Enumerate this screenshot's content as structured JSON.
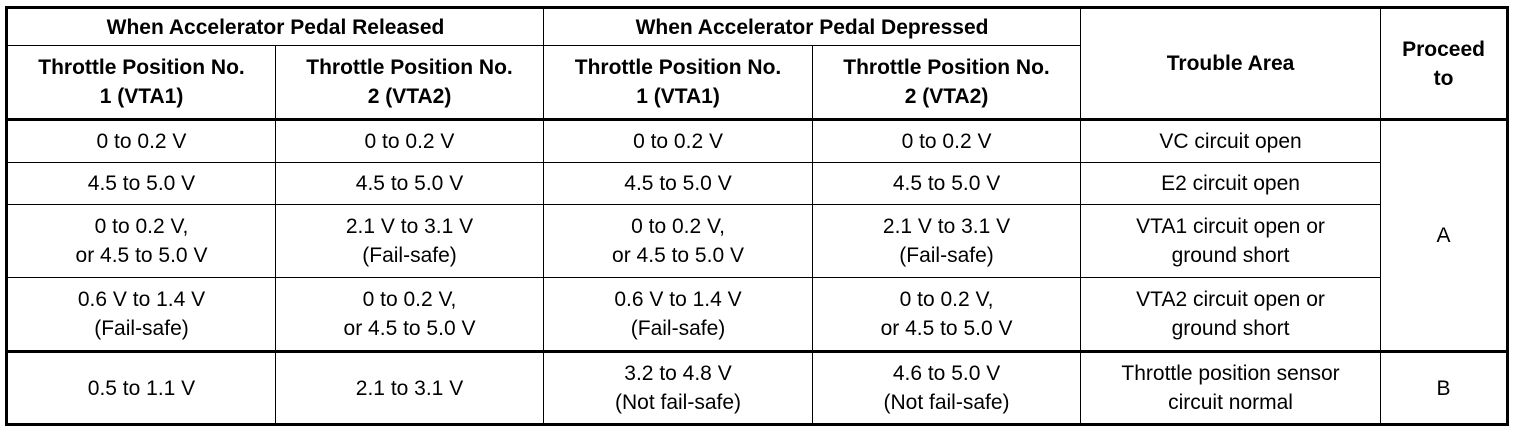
{
  "header": {
    "released": "When Accelerator Pedal Released",
    "depressed": "When Accelerator Pedal Depressed",
    "trouble_area": "Trouble Area",
    "proceed_to": "Proceed\nto",
    "tp1": "Throttle Position No.\n1 (VTA1)",
    "tp2": "Throttle Position No.\n2 (VTA2)"
  },
  "rows": [
    {
      "rel_vta1": "0 to 0.2 V",
      "rel_vta2": "0 to 0.2 V",
      "dep_vta1": "0 to 0.2 V",
      "dep_vta2": "0 to 0.2 V",
      "trouble": "VC circuit open"
    },
    {
      "rel_vta1": "4.5 to 5.0 V",
      "rel_vta2": "4.5 to 5.0 V",
      "dep_vta1": "4.5 to 5.0 V",
      "dep_vta2": "4.5 to 5.0 V",
      "trouble": "E2 circuit open"
    },
    {
      "rel_vta1": "0 to 0.2 V,\nor 4.5 to 5.0 V",
      "rel_vta2": "2.1 V to 3.1 V\n(Fail-safe)",
      "dep_vta1": "0 to 0.2 V,\nor 4.5 to 5.0 V",
      "dep_vta2": "2.1 V to 3.1 V\n(Fail-safe)",
      "trouble": "VTA1 circuit open or\nground short"
    },
    {
      "rel_vta1": "0.6 V to 1.4 V\n(Fail-safe)",
      "rel_vta2": "0 to 0.2 V,\nor 4.5 to 5.0 V",
      "dep_vta1": "0.6 V to 1.4 V\n(Fail-safe)",
      "dep_vta2": "0 to 0.2 V,\nor 4.5 to 5.0 V",
      "trouble": "VTA2 circuit open or\nground short"
    },
    {
      "rel_vta1": "0.5 to 1.1 V",
      "rel_vta2": "2.1 to 3.1 V",
      "dep_vta1": "3.2 to 4.8 V\n(Not fail-safe)",
      "dep_vta2": "4.6 to 5.0 V\n(Not fail-safe)",
      "trouble": "Throttle position sensor\ncircuit normal"
    }
  ],
  "proceed": {
    "group_a": "A",
    "group_b": "B"
  }
}
